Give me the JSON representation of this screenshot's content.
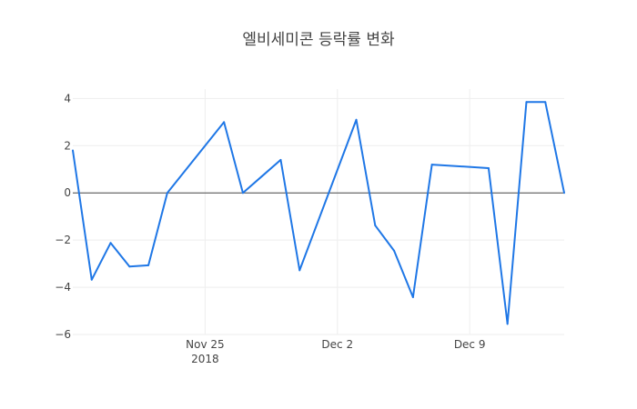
{
  "chart_data": {
    "type": "line",
    "title": "엘비세미콘 등락률 변화",
    "xlabel": "",
    "ylabel": "",
    "x": [
      "2018-11-17",
      "2018-11-18",
      "2018-11-19",
      "2018-11-20",
      "2018-11-21",
      "2018-11-22",
      "2018-11-23",
      "2018-11-24",
      "2018-11-25",
      "2018-11-26",
      "2018-11-27",
      "2018-11-28",
      "2018-11-29",
      "2018-11-30",
      "2018-12-01",
      "2018-12-02",
      "2018-12-03",
      "2018-12-04",
      "2018-12-05",
      "2018-12-06",
      "2018-12-07",
      "2018-12-08",
      "2018-12-09",
      "2018-12-10",
      "2018-12-11",
      "2018-12-12",
      "2018-12-13",
      "2018-12-14",
      "2018-12-15"
    ],
    "series": [
      {
        "color": "#1f77e6",
        "x": [
          "2018-11-18",
          "2018-11-19",
          "2018-11-20",
          "2018-11-21",
          "2018-11-22",
          "2018-11-23",
          "2018-11-26",
          "2018-11-27",
          "2018-11-28",
          "2018-11-29",
          "2018-11-30",
          "2018-12-03",
          "2018-12-04",
          "2018-12-05",
          "2018-12-06",
          "2018-12-07",
          "2018-12-10",
          "2018-12-11",
          "2018-12-12",
          "2018-12-13",
          "2018-12-14"
        ],
        "values": [
          1.8,
          -3.68,
          -2.12,
          -3.12,
          -3.07,
          0.0,
          3.0,
          0.0,
          0.7,
          1.4,
          -3.28,
          3.1,
          -1.38,
          -2.45,
          -4.42,
          1.2,
          1.05,
          -5.55,
          3.85,
          3.85,
          0.0
        ]
      }
    ],
    "xaxis": {
      "range": [
        "2018-11-18",
        "2018-12-14"
      ],
      "ticks": [
        {
          "date": "2018-11-25",
          "label": "Nov 25",
          "sublabel": "2018"
        },
        {
          "date": "2018-12-02",
          "label": "Dec 2",
          "sublabel": ""
        },
        {
          "date": "2018-12-09",
          "label": "Dec 9",
          "sublabel": ""
        }
      ]
    },
    "yaxis": {
      "range": [
        -6,
        4.4
      ],
      "ticks": [
        {
          "value": 4,
          "label": "4"
        },
        {
          "value": 2,
          "label": "2"
        },
        {
          "value": 0,
          "label": "0"
        },
        {
          "value": -2,
          "label": "−2"
        },
        {
          "value": -4,
          "label": "−4"
        },
        {
          "value": -6,
          "label": "−6"
        }
      ]
    },
    "grid": true,
    "zeroline": true,
    "legend": "none"
  }
}
